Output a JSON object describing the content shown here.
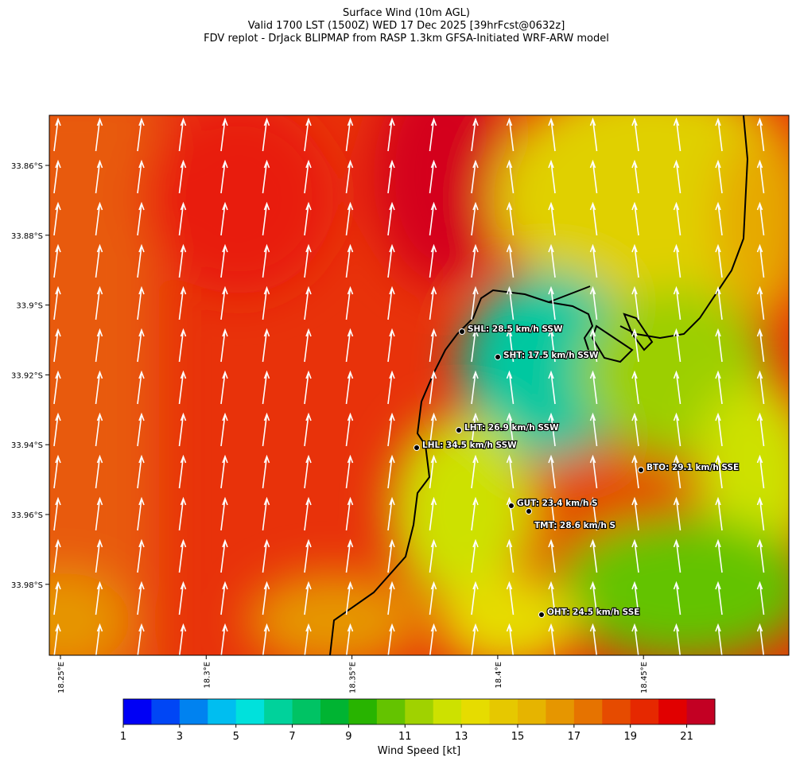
{
  "title": [
    "Surface Wind (10m AGL)",
    "Valid 1700 LST (1500Z) WED 17 Dec 2025 [39hrFcst@0632z]",
    "FDV replot - DrJack BLIPMAP from RASP 1.3km GFSA-Initiated WRF-ARW model"
  ],
  "lat_ticks": [
    "33.86°S",
    "33.88°S",
    "33.9°S",
    "33.92°S",
    "33.94°S",
    "33.96°S",
    "33.98°S"
  ],
  "lon_ticks": [
    "18.25°E",
    "18.3°E",
    "18.35°E",
    "18.4°E",
    "18.45°E"
  ],
  "stations": [
    "SHL: 28.5 km/h SSW",
    "SHT: 17.5 km/h SSW",
    "LHT: 26.9 km/h SSW",
    "LHL: 34.5 km/h SSW",
    "BTO: 29.1 km/h SSE",
    "GUT: 23.4 km/h S",
    "TMT: 28.6 km/h S",
    "OHT: 24.5 km/h SSE"
  ],
  "colorbar": {
    "label": "Wind Speed [kt]",
    "lim": [
      1,
      22
    ],
    "ticks": [
      1,
      3,
      5,
      7,
      9,
      11,
      13,
      15,
      17,
      19,
      21
    ],
    "colors": [
      "#0000f5",
      "#0046f5",
      "#0082f0",
      "#00bef0",
      "#00e1dc",
      "#00d29b",
      "#00c364",
      "#00b432",
      "#28b400",
      "#64c300",
      "#a0d200",
      "#cde100",
      "#e6dc00",
      "#e6c800",
      "#e6b400",
      "#e69600",
      "#e67300",
      "#e64b00",
      "#e62800",
      "#e10000",
      "#c30023"
    ]
  }
}
